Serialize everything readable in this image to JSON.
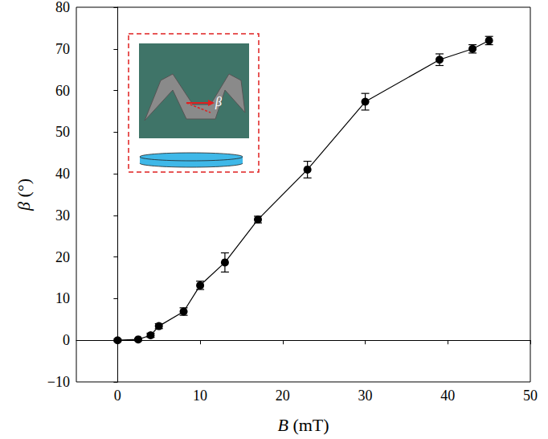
{
  "chart_data": {
    "type": "line",
    "x_label": "B (mT)",
    "y_label": "β (°)",
    "x": [
      0,
      2.5,
      4,
      5,
      8,
      10,
      13,
      17,
      23,
      30,
      39,
      43,
      45
    ],
    "series": [
      {
        "color": "#000000",
        "marker": "circle",
        "line_style": "solid",
        "values": [
          0,
          0.2,
          1.2,
          3.4,
          6.9,
          13.2,
          18.7,
          29,
          41,
          57.3,
          67.4,
          70,
          72
        ],
        "errors": [
          0.3,
          0.3,
          0.5,
          0.6,
          0.9,
          1,
          2.3,
          0.8,
          2,
          2,
          1.4,
          1,
          1
        ]
      }
    ],
    "xlim": [
      -5,
      50
    ],
    "xticks": [
      0,
      10,
      20,
      30,
      40,
      50
    ],
    "ylim": [
      -10,
      80
    ],
    "yticks": [
      {
        "value": -10,
        "label": "−10"
      },
      0,
      10,
      20,
      30,
      40,
      50,
      60,
      70,
      80
    ],
    "grid": false,
    "annotations": [
      "β"
    ]
  }
}
